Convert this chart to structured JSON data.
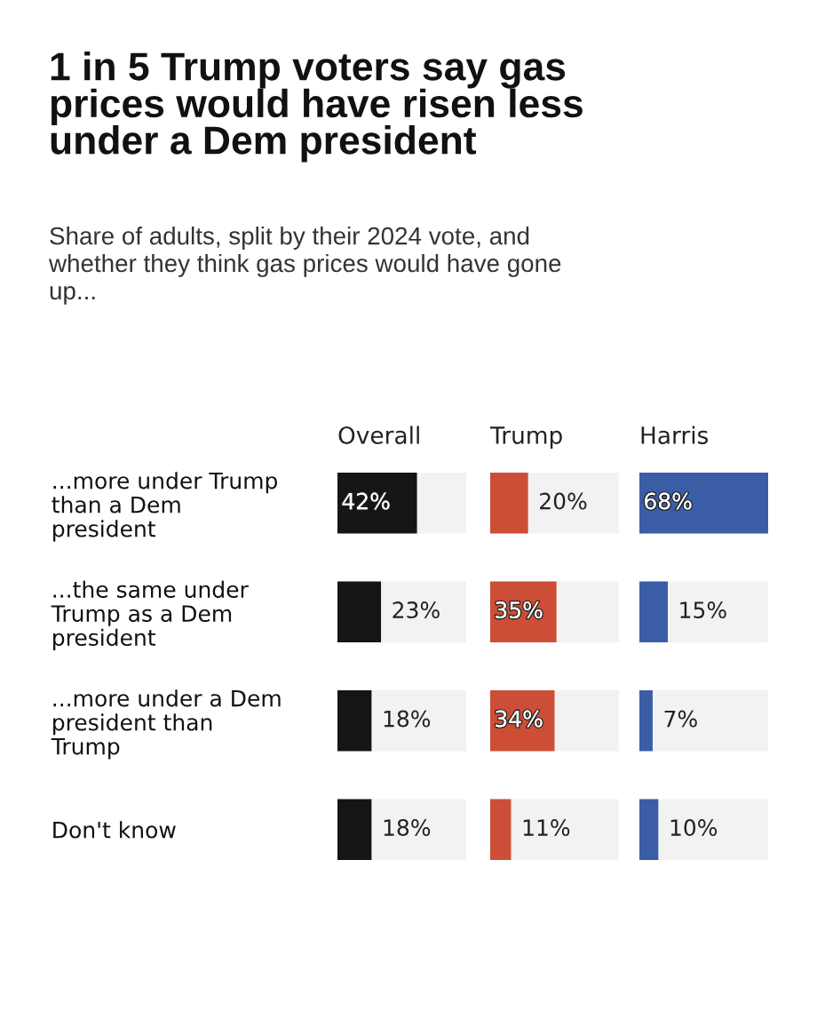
{
  "chart_data": [
    {
      "type": "bar",
      "orientation": "horizontal",
      "title": "Overall",
      "categories": [
        "...more under Trump\nthan a Dem\npresident",
        "...the same under\nTrump as a Dem\npresident",
        "...more under a Dem\npresident than\nTrump",
        "Don't know"
      ],
      "values": [
        42,
        23,
        18,
        18
      ],
      "value_labels": [
        "42%",
        "23%",
        "18%",
        "18%"
      ],
      "color": "#151515",
      "xlim": [
        0,
        68
      ],
      "annotations": [
        "1 in 5 Trump voters say gas\nprices would have risen less\nunder a Dem president",
        "Share of adults, split by their 2024 vote, and\nwhether they think gas prices would have gone\nup..."
      ]
    },
    {
      "type": "bar",
      "orientation": "horizontal",
      "title": "Trump",
      "categories": [
        null,
        null,
        null,
        null
      ],
      "values": [
        20,
        35,
        34,
        11
      ],
      "value_labels": [
        "20%",
        "35%",
        "34%",
        "11%"
      ],
      "color": "#cc4e36",
      "xlim": [
        0,
        68
      ]
    },
    {
      "type": "bar",
      "orientation": "horizontal",
      "title": "Harris",
      "categories": [
        null,
        null,
        null,
        null
      ],
      "values": [
        68,
        15,
        7,
        10
      ],
      "value_labels": [
        "68%",
        "15%",
        "7%",
        "10%"
      ],
      "color": "#3a5da6",
      "xlim": [
        0,
        68
      ]
    }
  ]
}
